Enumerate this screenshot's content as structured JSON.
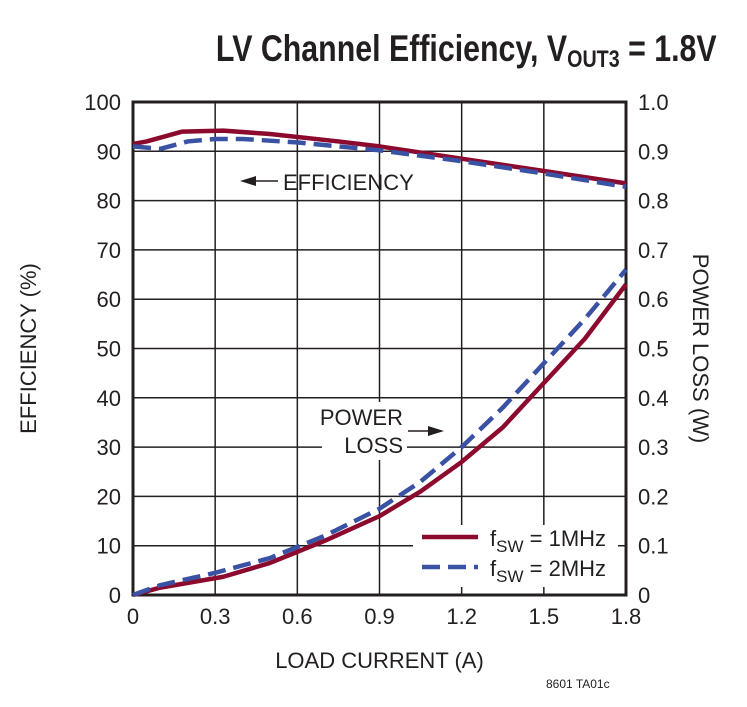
{
  "chart_data": {
    "type": "line",
    "title": {
      "main": "LV Channel Efficiency, V",
      "sub": "OUT3",
      "tail": " = 1.8V"
    },
    "xlabel": "LOAD CURRENT (A)",
    "ylabel": "EFFICIENCY (%)",
    "y2label": "POWER LOSS (W)",
    "xlim": [
      0,
      1.8
    ],
    "ylim": [
      0,
      100
    ],
    "y2lim": [
      0,
      1.0
    ],
    "xticks": [
      "0",
      "0.3",
      "0.6",
      "0.9",
      "1.2",
      "1.5",
      "1.8"
    ],
    "yticks": [
      "0",
      "10",
      "20",
      "30",
      "40",
      "50",
      "60",
      "70",
      "80",
      "90",
      "100"
    ],
    "y2ticks": [
      "0",
      "0.1",
      "0.2",
      "0.3",
      "0.4",
      "0.5",
      "0.6",
      "0.7",
      "0.8",
      "0.9",
      "1.0"
    ],
    "grid": true,
    "annotations": {
      "efficiency": "EFFICIENCY",
      "power_loss_1": "POWER",
      "power_loss_2": "LOSS"
    },
    "legend": {
      "placement": "bottom-right",
      "entries": [
        {
          "prefix": "f",
          "sub": "SW",
          "suffix": " = 1MHz"
        },
        {
          "prefix": "f",
          "sub": "SW",
          "suffix": " = 2MHz"
        }
      ]
    },
    "colors": {
      "1MHz": "#8b0a2e",
      "2MHz": "#3a52a4",
      "grid": "#231f20"
    },
    "series": [
      {
        "name": "fSW = 1MHz efficiency",
        "axis": "left",
        "style": "solid",
        "x": [
          0,
          0.05,
          0.18,
          0.33,
          0.5,
          0.75,
          0.9,
          1.2,
          1.5,
          1.8
        ],
        "y": [
          91.5,
          92,
          94,
          94.2,
          93.5,
          92,
          91,
          88.5,
          86,
          83.5
        ]
      },
      {
        "name": "fSW = 2MHz efficiency",
        "axis": "left",
        "style": "dashed",
        "x": [
          0,
          0.1,
          0.2,
          0.3,
          0.4,
          0.6,
          0.9,
          1.2,
          1.5,
          1.8
        ],
        "y": [
          91,
          90.5,
          92,
          92.5,
          92.5,
          91.8,
          90.2,
          88,
          85.5,
          82.8
        ]
      },
      {
        "name": "fSW = 1MHz power loss",
        "axis": "right",
        "style": "solid",
        "x": [
          0,
          0.1,
          0.33,
          0.5,
          0.7,
          0.9,
          1.05,
          1.2,
          1.35,
          1.5,
          1.65,
          1.8
        ],
        "y": [
          0,
          0.015,
          0.037,
          0.065,
          0.11,
          0.16,
          0.21,
          0.27,
          0.34,
          0.43,
          0.52,
          0.63
        ]
      },
      {
        "name": "fSW = 2MHz power loss",
        "axis": "right",
        "style": "dashed",
        "x": [
          0,
          0.1,
          0.3,
          0.5,
          0.7,
          0.9,
          1.05,
          1.2,
          1.35,
          1.5,
          1.65,
          1.8
        ],
        "y": [
          0,
          0.02,
          0.045,
          0.075,
          0.12,
          0.175,
          0.23,
          0.3,
          0.38,
          0.47,
          0.56,
          0.66
        ]
      }
    ]
  },
  "footnote": "8601 TA01c"
}
